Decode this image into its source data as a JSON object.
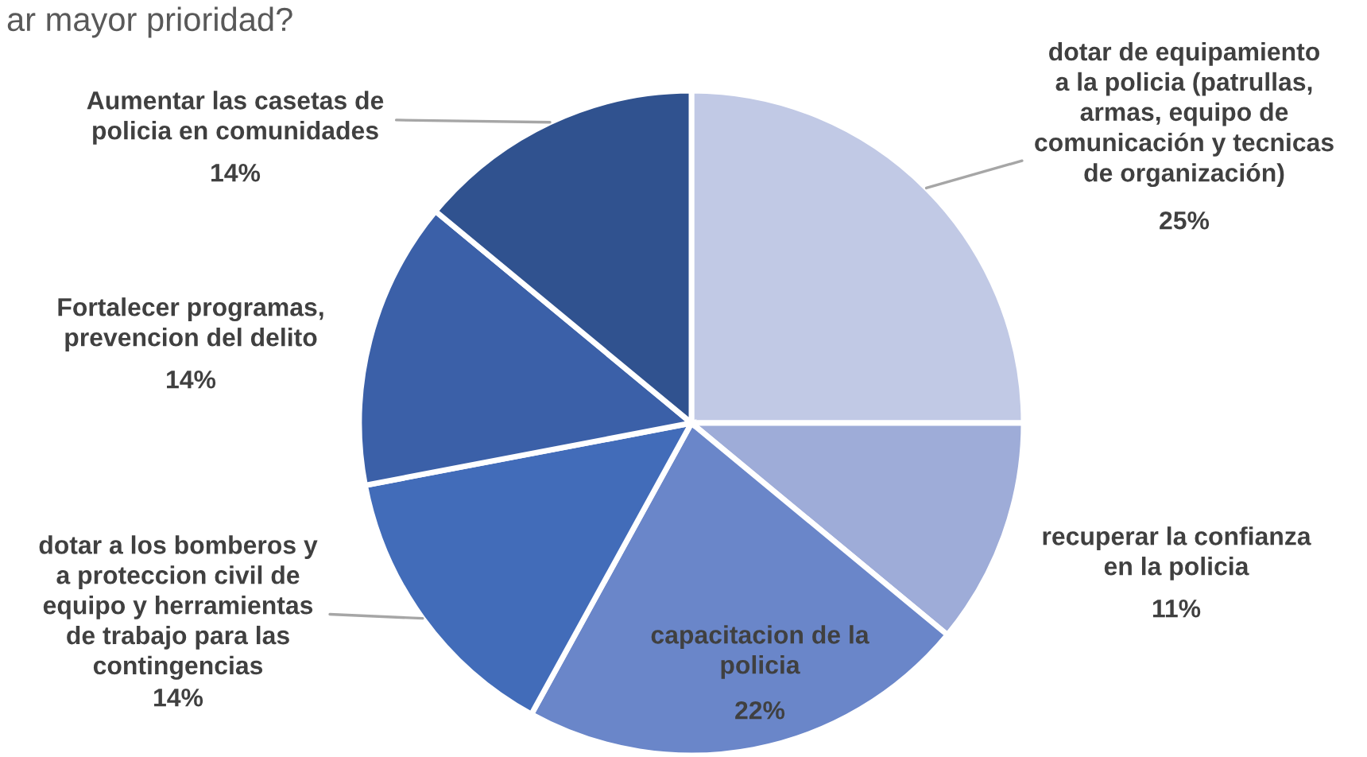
{
  "chart_data": {
    "type": "pie",
    "title": "ar mayor prioridad?",
    "categories": [
      "dotar de equipamiento\na la policia (patrullas,\narmas, equipo de\ncomunicación y tecnicas\nde organización)",
      "recuperar la confianza\nen la policia",
      "capacitacion de la\npolicia",
      "dotar a los bomberos y\na proteccion civil de\nequipo y herramientas\nde trabajo para las\ncontingencias",
      "Fortalecer programas,\nprevencion del delito",
      "Aumentar las casetas de\npolicia en comunidades"
    ],
    "values": [
      25,
      11,
      22,
      14,
      14,
      14
    ],
    "colors": [
      "#c1c9e5",
      "#9eacd8",
      "#6a86c9",
      "#426cb9",
      "#3b60a8",
      "#30528f"
    ],
    "value_labels": [
      "25%",
      "11%",
      "22%",
      "14%",
      "14%",
      "14%"
    ]
  }
}
